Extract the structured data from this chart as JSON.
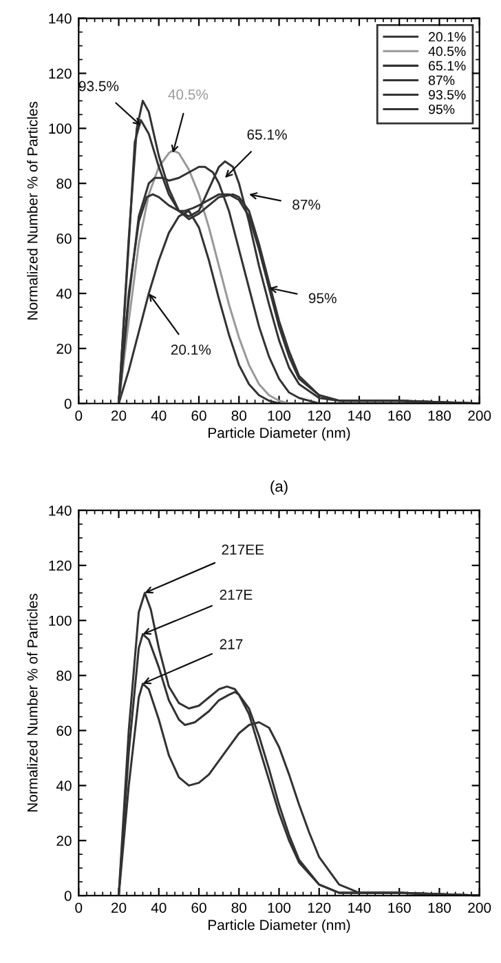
{
  "chart_data": [
    {
      "type": "line",
      "xlabel": "Particle Diameter (nm)",
      "ylabel": "Normalized Number % of Particles",
      "xlim": [
        0,
        200
      ],
      "ylim": [
        0,
        140
      ],
      "xticks": [
        0,
        20,
        40,
        60,
        80,
        100,
        120,
        140,
        160,
        180,
        200
      ],
      "yticks": [
        0,
        20,
        40,
        60,
        80,
        100,
        120,
        140
      ],
      "legend": "top right",
      "grid": false,
      "marker": "none",
      "line_style": "solid",
      "series": [
        {
          "name": "20.1%",
          "color": "#333333",
          "x": [
            20,
            25,
            30,
            35,
            40,
            45,
            50,
            55,
            60,
            65,
            70,
            75,
            80,
            85,
            90,
            95,
            100,
            110,
            200
          ],
          "values": [
            0,
            12,
            26,
            40,
            52,
            62,
            68,
            70,
            64,
            52,
            38,
            25,
            14,
            7,
            3,
            1,
            0,
            0,
            0
          ]
        },
        {
          "name": "40.5%",
          "color": "#999999",
          "x": [
            20,
            25,
            30,
            35,
            40,
            45,
            47,
            50,
            55,
            60,
            65,
            70,
            75,
            80,
            85,
            90,
            95,
            100,
            105,
            110,
            200
          ],
          "values": [
            0,
            30,
            58,
            76,
            86,
            91,
            92,
            91,
            85,
            76,
            64,
            50,
            36,
            24,
            14,
            7,
            3,
            1,
            0,
            0,
            0
          ]
        },
        {
          "name": "65.1%",
          "color": "#333333",
          "x": [
            20,
            25,
            30,
            35,
            38,
            42,
            45,
            50,
            55,
            60,
            63,
            67,
            70,
            75,
            80,
            85,
            90,
            95,
            100,
            105,
            110,
            120,
            130,
            200
          ],
          "values": [
            0,
            38,
            68,
            80,
            82,
            82,
            81,
            82,
            84,
            86,
            86,
            84,
            80,
            70,
            56,
            42,
            28,
            17,
            9,
            4,
            2,
            0,
            0,
            0
          ]
        },
        {
          "name": "87%",
          "color": "#333333",
          "x": [
            20,
            25,
            30,
            34,
            37,
            40,
            45,
            50,
            53,
            57,
            60,
            65,
            70,
            75,
            80,
            85,
            90,
            95,
            100,
            105,
            110,
            120,
            130,
            140,
            160,
            200
          ],
          "values": [
            0,
            40,
            66,
            75,
            76,
            75,
            72,
            70,
            70,
            71,
            72,
            74,
            76,
            76,
            74,
            68,
            56,
            42,
            28,
            17,
            9,
            3,
            1,
            1,
            1,
            0
          ]
        },
        {
          "name": "93.5%",
          "color": "#333333",
          "x": [
            20,
            25,
            29,
            32,
            35,
            40,
            45,
            50,
            55,
            60,
            65,
            70,
            73,
            77,
            80,
            85,
            90,
            95,
            100,
            105,
            110,
            120,
            130,
            140,
            160,
            200
          ],
          "values": [
            0,
            60,
            100,
            110,
            106,
            90,
            78,
            70,
            68,
            70,
            78,
            86,
            88,
            86,
            80,
            66,
            50,
            36,
            23,
            13,
            7,
            2,
            1,
            1,
            1,
            0
          ]
        },
        {
          "name": "95%",
          "color": "#333333",
          "x": [
            20,
            25,
            28,
            31,
            35,
            40,
            45,
            50,
            55,
            60,
            65,
            70,
            77,
            80,
            85,
            90,
            95,
            100,
            105,
            110,
            120,
            130,
            140,
            160,
            200
          ],
          "values": [
            0,
            58,
            95,
            103,
            98,
            86,
            76,
            70,
            67,
            69,
            72,
            75,
            76,
            75,
            70,
            58,
            44,
            30,
            19,
            10,
            3,
            1,
            1,
            1,
            0
          ]
        }
      ],
      "annotations": [
        {
          "text": "93.5%",
          "x": 31,
          "y": 101
        },
        {
          "text": "40.5%",
          "x": 47,
          "y": 91
        },
        {
          "text": "65.1%",
          "x": 73,
          "y": 82
        },
        {
          "text": "87%",
          "x": 85,
          "y": 76
        },
        {
          "text": "95%",
          "x": 95,
          "y": 42
        },
        {
          "text": "20.1%",
          "x": 35,
          "y": 40
        },
        "(a)"
      ]
    },
    {
      "type": "line",
      "xlabel": "Particle Diameter (nm)",
      "ylabel": "Normalized Number % of Particles",
      "xlim": [
        0,
        200
      ],
      "ylim": [
        0,
        140
      ],
      "xticks": [
        0,
        20,
        40,
        60,
        80,
        100,
        120,
        140,
        160,
        180,
        200
      ],
      "yticks": [
        0,
        20,
        40,
        60,
        80,
        100,
        120,
        140
      ],
      "legend": false,
      "grid": false,
      "marker": "none",
      "line_style": "solid",
      "series": [
        {
          "name": "217EE",
          "color": "#333333",
          "x": [
            20,
            25,
            30,
            33,
            36,
            40,
            45,
            50,
            55,
            60,
            65,
            70,
            74,
            78,
            80,
            85,
            90,
            95,
            100,
            105,
            110,
            120,
            130,
            140,
            160,
            200
          ],
          "values": [
            0,
            60,
            103,
            110,
            104,
            90,
            76,
            70,
            68,
            69,
            72,
            75,
            76,
            75,
            73,
            66,
            54,
            42,
            30,
            20,
            12,
            4,
            1,
            1,
            1,
            0
          ]
        },
        {
          "name": "217E",
          "color": "#333333",
          "x": [
            20,
            25,
            30,
            32,
            35,
            40,
            45,
            50,
            53,
            58,
            65,
            70,
            75,
            78,
            80,
            85,
            90,
            95,
            100,
            105,
            110,
            120,
            130,
            140,
            160,
            200
          ],
          "values": [
            0,
            52,
            90,
            95,
            93,
            83,
            71,
            64,
            62,
            63,
            67,
            71,
            73,
            74,
            73,
            68,
            58,
            46,
            33,
            22,
            13,
            4,
            1,
            1,
            1,
            0
          ]
        },
        {
          "name": "217",
          "color": "#333333",
          "x": [
            20,
            25,
            30,
            32,
            35,
            40,
            45,
            50,
            55,
            60,
            65,
            70,
            75,
            80,
            85,
            90,
            95,
            100,
            105,
            110,
            115,
            120,
            130,
            140,
            160,
            200
          ],
          "values": [
            0,
            40,
            72,
            77,
            75,
            64,
            51,
            43,
            40,
            41,
            44,
            49,
            54,
            59,
            62,
            63,
            61,
            54,
            44,
            33,
            23,
            14,
            4,
            1,
            1,
            0
          ]
        }
      ]
    }
  ]
}
